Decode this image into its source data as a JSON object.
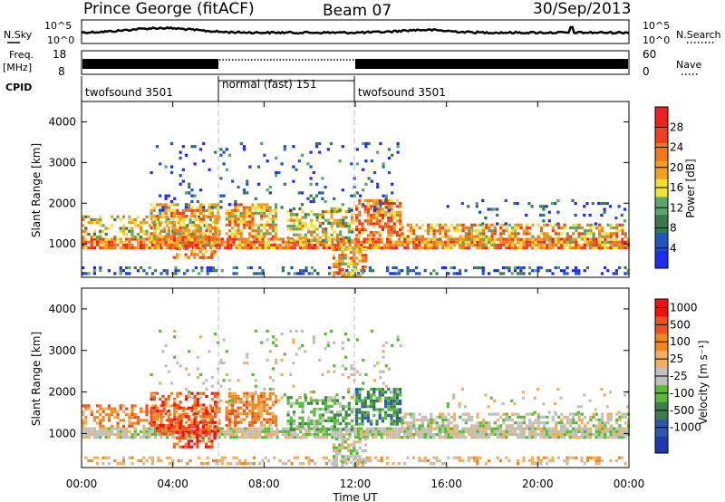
{
  "header": {
    "station": "Prince George (fitACF)",
    "beam": "Beam 07",
    "date": "30/Sep/2013"
  },
  "panels": {
    "nsky_label": "N.Sky",
    "nsky_ticks": [
      "10^5",
      "10^0"
    ],
    "nsearch_label": "N.Search",
    "nsearch_ticks": [
      "10^5",
      "10^0"
    ],
    "freq_label": "Freq.",
    "freq_unit": "[MHz]",
    "freq_ticks": [
      "18",
      "8"
    ],
    "nave_label": "Nave",
    "nave_ticks": [
      "60",
      "0"
    ],
    "cpid_label": "CPID",
    "cpid_segments": [
      {
        "label": "twofsound 3501",
        "start_h": 0,
        "end_h": 6
      },
      {
        "label": "normal (fast) 151",
        "start_h": 6,
        "end_h": 12
      },
      {
        "label": "twofsound 3501",
        "start_h": 12,
        "end_h": 24
      }
    ]
  },
  "colors": {
    "power": [
      "#1e2cf0",
      "#2255c0",
      "#3a7a4a",
      "#56a868",
      "#f0e038",
      "#f0a020",
      "#f07818",
      "#f04020",
      "#f02020"
    ],
    "velocity": [
      "#2038b0",
      "#2e58a8",
      "#3c8048",
      "#5aba3a",
      "#c0c0c0",
      "#f0b060",
      "#f08820",
      "#f05020",
      "#f01010"
    ]
  },
  "chart_data": [
    {
      "type": "heatmap",
      "name": "power",
      "xlabel": "",
      "ylabel": "Slant Range [km]",
      "x_range_h": [
        0,
        24
      ],
      "ylim": [
        180,
        4500
      ],
      "y_ticks": [
        1000,
        2000,
        3000,
        4000
      ],
      "colorbar_label": "Power [dB]",
      "colorbar_ticks": [
        "4",
        "8",
        "12",
        "16",
        "20",
        "24",
        "28"
      ],
      "colorbar_range": [
        0,
        32
      ]
    },
    {
      "type": "heatmap",
      "name": "velocity",
      "xlabel": "Time UT",
      "ylabel": "Slant Range [km]",
      "x_range_h": [
        0,
        24
      ],
      "x_tick_labels": [
        "00:00",
        "04:00",
        "08:00",
        "12:00",
        "16:00",
        "20:00",
        "00:00"
      ],
      "ylim": [
        180,
        4500
      ],
      "y_ticks": [
        1000,
        2000,
        3000,
        4000
      ],
      "colorbar_label": "Velocity [m s⁻¹]",
      "colorbar_ticks": [
        "1000",
        "500",
        "100",
        "25",
        "-25",
        "-100",
        "-500",
        "-1000"
      ]
    }
  ]
}
